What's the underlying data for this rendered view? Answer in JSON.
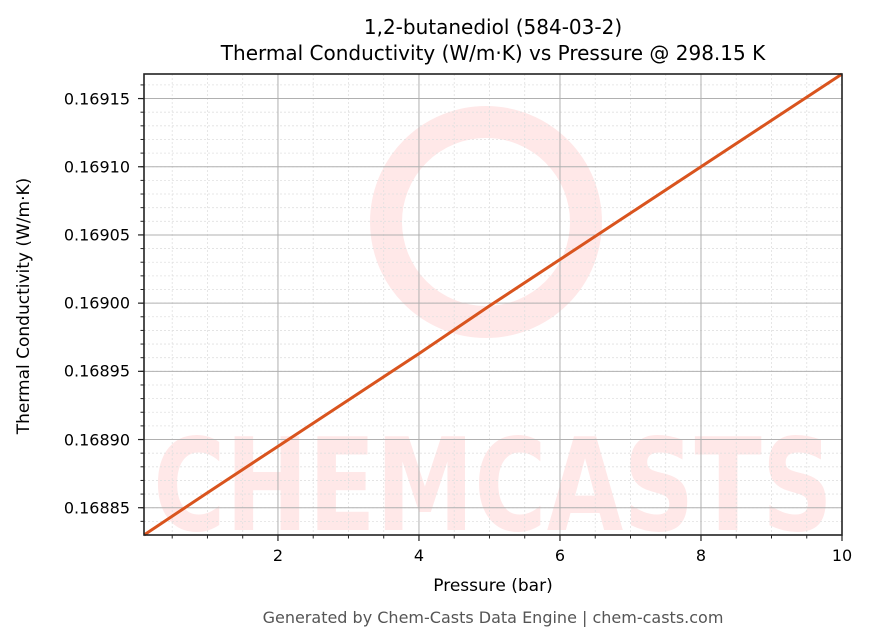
{
  "title": {
    "line1": "1,2-butanediol (584-03-2)",
    "line2": "Thermal Conductivity (W/m·K) vs Pressure @ 298.15 K"
  },
  "axes": {
    "xlabel": "Pressure (bar)",
    "ylabel": "Thermal Conductivity (W/m·K)",
    "xticks": [
      "2",
      "4",
      "6",
      "8",
      "10"
    ],
    "yticks": [
      "0.16885",
      "0.16890",
      "0.16895",
      "0.16900",
      "0.16905",
      "0.16910",
      "0.16915"
    ]
  },
  "watermark": {
    "text": "CHEMCASTS",
    "color": "#ff0000"
  },
  "footer": "Generated by Chem-Casts Data Engine | chem-casts.com",
  "colors": {
    "line": "#d9541e",
    "grid_major": "#b0b0b0",
    "grid_minor": "#e0e0e0",
    "axis": "#222222"
  },
  "chart_data": {
    "type": "line",
    "title": "1,2-butanediol (584-03-2) Thermal Conductivity (W/m·K) vs Pressure @ 298.15 K",
    "xlabel": "Pressure (bar)",
    "ylabel": "Thermal Conductivity (W/m·K)",
    "xlim": [
      0.1,
      10
    ],
    "ylim": [
      0.16883,
      0.169168
    ],
    "grid": true,
    "legend": null,
    "series": [
      {
        "name": "Thermal Conductivity",
        "x": [
          0.1,
          1,
          2,
          3,
          4,
          5,
          6,
          7,
          8,
          9,
          10
        ],
        "values": [
          0.16883,
          0.168861,
          0.168895,
          0.168929,
          0.168963,
          0.168998,
          0.169032,
          0.169066,
          0.1691,
          0.169134,
          0.169168
        ]
      }
    ]
  }
}
